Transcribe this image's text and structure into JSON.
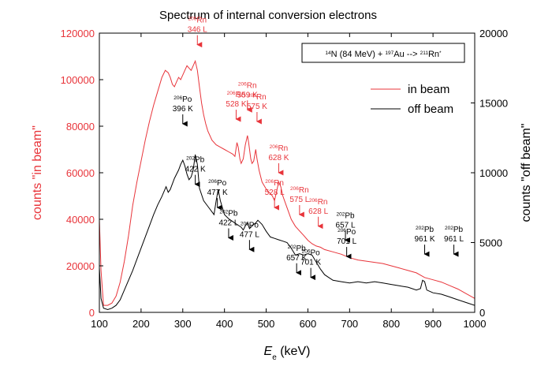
{
  "chart_data": {
    "type": "line",
    "title": "Spectrum of internal conversion electrons",
    "xlabel_main": "E",
    "xlabel_sub": "e",
    "xlabel_unit": " (keV)",
    "ylabel_left": "counts \"in beam\"",
    "ylabel_right": "counts \"off beam\"",
    "xlim": [
      100,
      1000
    ],
    "ylim_left": [
      0,
      120000
    ],
    "ylim_right": [
      0,
      20000
    ],
    "x_ticks": [
      "100",
      "200",
      "300",
      "400",
      "500",
      "600",
      "700",
      "800",
      "900",
      "1000"
    ],
    "y_left_ticks": [
      "0",
      "20000",
      "40000",
      "60000",
      "80000",
      "100000",
      "120000"
    ],
    "y_right_ticks": [
      "0",
      "5000",
      "10000",
      "15000",
      "20000"
    ],
    "reaction": {
      "z1": "14",
      "n1": "N (84 MeV) + ",
      "z2": "197",
      "n2": "Au --> ",
      "z3": "211",
      "n3": "Rn",
      "star": "*"
    },
    "legend": {
      "in_beam": "in beam",
      "off_beam": "off beam"
    },
    "colors": {
      "in_beam": "#e8343a",
      "off_beam": "#000000"
    },
    "series": [
      {
        "name": "in beam",
        "axis": "left",
        "points": [
          [
            100,
            40000
          ],
          [
            104,
            18000
          ],
          [
            110,
            3000
          ],
          [
            120,
            3000
          ],
          [
            130,
            4000
          ],
          [
            140,
            7000
          ],
          [
            150,
            13000
          ],
          [
            160,
            22000
          ],
          [
            170,
            33000
          ],
          [
            180,
            46000
          ],
          [
            190,
            56000
          ],
          [
            200,
            65000
          ],
          [
            210,
            74000
          ],
          [
            220,
            82000
          ],
          [
            230,
            89000
          ],
          [
            240,
            95000
          ],
          [
            250,
            101000
          ],
          [
            258,
            104000
          ],
          [
            265,
            103000
          ],
          [
            270,
            101000
          ],
          [
            275,
            98000
          ],
          [
            280,
            97000
          ],
          [
            285,
            99000
          ],
          [
            290,
            101000
          ],
          [
            295,
            100000
          ],
          [
            300,
            102000
          ],
          [
            305,
            104000
          ],
          [
            310,
            106000
          ],
          [
            315,
            105000
          ],
          [
            320,
            104000
          ],
          [
            325,
            106000
          ],
          [
            330,
            108000
          ],
          [
            335,
            104000
          ],
          [
            340,
            97000
          ],
          [
            345,
            90000
          ],
          [
            350,
            85000
          ],
          [
            355,
            81000
          ],
          [
            360,
            78000
          ],
          [
            370,
            74000
          ],
          [
            380,
            72000
          ],
          [
            390,
            71000
          ],
          [
            400,
            70000
          ],
          [
            410,
            69000
          ],
          [
            420,
            68000
          ],
          [
            425,
            67000
          ],
          [
            430,
            73000
          ],
          [
            433,
            71000
          ],
          [
            437,
            66000
          ],
          [
            440,
            64000
          ],
          [
            445,
            66000
          ],
          [
            450,
            72000
          ],
          [
            455,
            76000
          ],
          [
            458,
            73000
          ],
          [
            463,
            66000
          ],
          [
            466,
            64000
          ],
          [
            470,
            65000
          ],
          [
            475,
            70000
          ],
          [
            478,
            66000
          ],
          [
            483,
            61000
          ],
          [
            490,
            56000
          ],
          [
            500,
            53000
          ],
          [
            510,
            51000
          ],
          [
            515,
            50000
          ],
          [
            520,
            48000
          ],
          [
            530,
            56000
          ],
          [
            535,
            54000
          ],
          [
            540,
            50000
          ],
          [
            550,
            45000
          ],
          [
            560,
            40000
          ],
          [
            570,
            37000
          ],
          [
            580,
            35000
          ],
          [
            590,
            33000
          ],
          [
            600,
            31000
          ],
          [
            610,
            29500
          ],
          [
            620,
            28500
          ],
          [
            630,
            28000
          ],
          [
            640,
            27000
          ],
          [
            660,
            26000
          ],
          [
            680,
            25000
          ],
          [
            700,
            23500
          ],
          [
            720,
            22500
          ],
          [
            740,
            22000
          ],
          [
            760,
            21500
          ],
          [
            780,
            21000
          ],
          [
            800,
            20000
          ],
          [
            820,
            19000
          ],
          [
            840,
            18000
          ],
          [
            860,
            17000
          ],
          [
            880,
            15000
          ],
          [
            900,
            14000
          ],
          [
            920,
            13000
          ],
          [
            940,
            11500
          ],
          [
            960,
            10000
          ],
          [
            980,
            8000
          ],
          [
            1000,
            6000
          ]
        ]
      },
      {
        "name": "off beam",
        "axis": "right",
        "points": [
          [
            100,
            3200
          ],
          [
            104,
            1000
          ],
          [
            110,
            300
          ],
          [
            120,
            200
          ],
          [
            130,
            300
          ],
          [
            140,
            500
          ],
          [
            150,
            900
          ],
          [
            160,
            1600
          ],
          [
            170,
            2300
          ],
          [
            180,
            3000
          ],
          [
            190,
            3800
          ],
          [
            200,
            4600
          ],
          [
            210,
            5400
          ],
          [
            220,
            6200
          ],
          [
            230,
            7000
          ],
          [
            240,
            7700
          ],
          [
            250,
            8300
          ],
          [
            260,
            9000
          ],
          [
            265,
            8600
          ],
          [
            270,
            8800
          ],
          [
            280,
            9600
          ],
          [
            290,
            10200
          ],
          [
            295,
            10600
          ],
          [
            300,
            10900
          ],
          [
            305,
            10500
          ],
          [
            310,
            9900
          ],
          [
            315,
            9500
          ],
          [
            320,
            9700
          ],
          [
            325,
            10200
          ],
          [
            330,
            11300
          ],
          [
            335,
            10600
          ],
          [
            340,
            8900
          ],
          [
            350,
            8000
          ],
          [
            360,
            7600
          ],
          [
            370,
            7200
          ],
          [
            375,
            7000
          ],
          [
            380,
            8000
          ],
          [
            385,
            8800
          ],
          [
            390,
            8000
          ],
          [
            400,
            7000
          ],
          [
            410,
            6700
          ],
          [
            420,
            6500
          ],
          [
            430,
            6300
          ],
          [
            440,
            6100
          ],
          [
            445,
            5900
          ],
          [
            450,
            6200
          ],
          [
            455,
            6400
          ],
          [
            460,
            6000
          ],
          [
            470,
            6300
          ],
          [
            475,
            6400
          ],
          [
            480,
            6600
          ],
          [
            490,
            6300
          ],
          [
            500,
            5800
          ],
          [
            510,
            5400
          ],
          [
            520,
            5300
          ],
          [
            530,
            5200
          ],
          [
            540,
            5100
          ],
          [
            550,
            5000
          ],
          [
            560,
            4600
          ],
          [
            570,
            4100
          ],
          [
            580,
            4200
          ],
          [
            590,
            4100
          ],
          [
            600,
            4200
          ],
          [
            610,
            4100
          ],
          [
            620,
            3600
          ],
          [
            630,
            3100
          ],
          [
            640,
            2700
          ],
          [
            650,
            2500
          ],
          [
            660,
            2300
          ],
          [
            680,
            2200
          ],
          [
            700,
            2100
          ],
          [
            720,
            2200
          ],
          [
            740,
            2100
          ],
          [
            760,
            2200
          ],
          [
            780,
            2100
          ],
          [
            800,
            2000
          ],
          [
            820,
            1900
          ],
          [
            840,
            1800
          ],
          [
            860,
            1600
          ],
          [
            870,
            1700
          ],
          [
            875,
            2300
          ],
          [
            880,
            2200
          ],
          [
            885,
            1600
          ],
          [
            900,
            1400
          ],
          [
            920,
            1300
          ],
          [
            940,
            1100
          ],
          [
            960,
            900
          ],
          [
            980,
            700
          ],
          [
            1000,
            500
          ]
        ]
      }
    ],
    "red_annotations": [
      {
        "mass": "206",
        "elem": "Rn",
        "line": "346 L",
        "x": 335,
        "y": 113000
      },
      {
        "mass": "206",
        "elem": "Rn",
        "line": "528 K",
        "x": 428,
        "y": 81000
      },
      {
        "mass": "206",
        "elem": "Rn",
        "line": "559 K",
        "x": 455,
        "y": 85000
      },
      {
        "mass": "206",
        "elem": "Rn",
        "line": "575 K",
        "x": 478,
        "y": 80000
      },
      {
        "mass": "206",
        "elem": "Rn",
        "line": "628 K",
        "x": 530,
        "y": 58000
      },
      {
        "mass": "206",
        "elem": "Rn",
        "line": "528 L",
        "x": 520,
        "y": 43000
      },
      {
        "mass": "206",
        "elem": "Rn",
        "line": "575 L",
        "x": 580,
        "y": 40000
      },
      {
        "mass": "206",
        "elem": "Rn",
        "line": "628 L",
        "x": 625,
        "y": 35000
      }
    ],
    "black_annotations": [
      {
        "mass": "206",
        "elem": "Po",
        "line": "396 K",
        "x": 300,
        "y": 79000
      },
      {
        "mass": "202",
        "elem": "Pb",
        "line": "422 K",
        "x": 330,
        "y": 53000
      },
      {
        "mass": "206",
        "elem": "Po",
        "line": "477 K",
        "x": 383,
        "y": 43000
      },
      {
        "mass": "202",
        "elem": "Pb",
        "line": "422 L",
        "x": 410,
        "y": 30000
      },
      {
        "mass": "206",
        "elem": "Po",
        "line": "477 L",
        "x": 460,
        "y": 25000
      },
      {
        "mass": "202",
        "elem": "Pb",
        "line": "657 K",
        "x": 573,
        "y": 15000
      },
      {
        "mass": "206",
        "elem": "Po",
        "line": "701 K",
        "x": 607,
        "y": 13000
      },
      {
        "mass": "202",
        "elem": "Pb",
        "line": "657 L",
        "x": 690,
        "y": 29000
      },
      {
        "mass": "206",
        "elem": "Po",
        "line": "701 L",
        "x": 693,
        "y": 22000
      },
      {
        "mass": "202",
        "elem": "Pb",
        "line": "961 K",
        "x": 880,
        "y": 23000
      },
      {
        "mass": "202",
        "elem": "Pb",
        "line": "961 L",
        "x": 950,
        "y": 23000
      }
    ]
  }
}
